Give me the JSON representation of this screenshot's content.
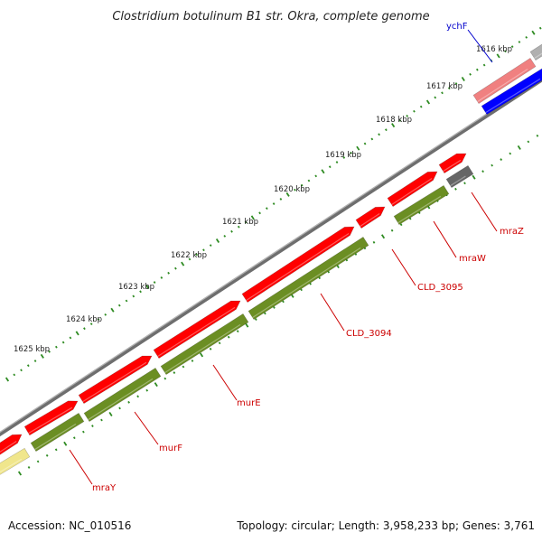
{
  "title": "Clostridium botulinum B1 str. Okra, complete genome",
  "scale": {
    "kbp_labels": [
      "1616 kbp",
      "1617 kbp",
      "1618 kbp",
      "1619 kbp",
      "1620 kbp",
      "1621 kbp",
      "1622 kbp",
      "1623 kbp",
      "1624 kbp",
      "1625 kbp"
    ]
  },
  "genes": [
    {
      "label": "ychF",
      "color": "#0000cc"
    },
    {
      "label": "mraZ",
      "color": "#cc0000"
    },
    {
      "label": "mraW",
      "color": "#cc0000"
    },
    {
      "label": "CLD_3095",
      "color": "#cc0000"
    },
    {
      "label": "CLD_3094",
      "color": "#cc0000"
    },
    {
      "label": "murE",
      "color": "#cc0000"
    },
    {
      "label": "murF",
      "color": "#cc0000"
    },
    {
      "label": "mraY",
      "color": "#cc0000"
    }
  ],
  "colors": {
    "cds": "#ff0000",
    "gene": "#6b8e23",
    "tick": "#2e8b22",
    "backbone": "#888888",
    "pink": "#f08080",
    "blue": "#0000ff",
    "gray_gene": "#666666",
    "khaki": "#f0e68c"
  },
  "footer": {
    "accession": "Accession: NC_010516",
    "topology": "Topology: circular; Length: 3,958,233 bp; Genes: 3,761"
  }
}
